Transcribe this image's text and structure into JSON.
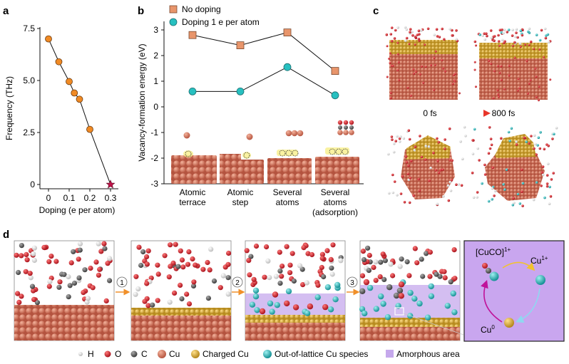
{
  "panels": {
    "a": "a",
    "b": "b",
    "c": "c",
    "d": "d"
  },
  "chart_data": [
    {
      "type": "line",
      "title": "",
      "xlabel": "Doping (e per atom)",
      "ylabel": "Frequency (THz)",
      "x": [
        0,
        0.05,
        0.1,
        0.125,
        0.15,
        0.2,
        0.3
      ],
      "values": [
        7.0,
        5.9,
        4.95,
        4.4,
        4.1,
        2.65,
        0.0
      ],
      "xticks": [
        "0",
        "0.1",
        "0.2",
        "0.3"
      ],
      "yticks": [
        "0",
        "2.5",
        "5.0",
        "7.5"
      ],
      "xlim": [
        -0.02,
        0.32
      ],
      "ylim": [
        -0.2,
        7.6
      ],
      "last_point_marker": "star"
    },
    {
      "type": "line",
      "xlabel": "",
      "ylabel": "Vacancy-formation energy (eV)",
      "categories": [
        "Atomic terrace",
        "Atomic step",
        "Several atoms",
        "Several atoms (adsorption)"
      ],
      "category_lines": [
        [
          "Atomic",
          "terrace"
        ],
        [
          "Atomic",
          "step"
        ],
        [
          "Several",
          "atoms"
        ],
        [
          "Several",
          "atoms",
          "(adsorption)"
        ]
      ],
      "series": [
        {
          "name": "No doping",
          "values": [
            2.8,
            2.4,
            2.9,
            1.4
          ],
          "color": "#e8956b",
          "marker": "square"
        },
        {
          "name": "Doping 1 e per atom",
          "values": [
            0.6,
            0.6,
            1.55,
            0.45
          ],
          "color": "#27c0c0",
          "marker": "circle"
        }
      ],
      "yticks": [
        "-3",
        "-2",
        "-1",
        "0",
        "1",
        "2",
        "3"
      ],
      "ylim": [
        -3,
        3.3
      ]
    }
  ],
  "panel_c": {
    "time_start": "0 fs",
    "time_end": "800 fs"
  },
  "panel_d": {
    "steps": [
      "1",
      "2",
      "3"
    ],
    "cycle": {
      "species_top": "[CuCO]",
      "species_top_charge": "1+",
      "species_right": "Cu",
      "species_right_charge": "1+",
      "species_bottom": "Cu",
      "species_bottom_charge": "0"
    }
  },
  "legend": [
    {
      "label": "H",
      "color": "#f2f2f2"
    },
    {
      "label": "O",
      "color": "#d8232a"
    },
    {
      "label": "C",
      "color": "#6b6b6b"
    },
    {
      "label": "Cu",
      "color": "#d8765e"
    },
    {
      "label": "Charged Cu",
      "color": "#e2b53a"
    },
    {
      "label": "Out-of-lattice Cu species",
      "color": "#27c0c0"
    },
    {
      "label": "Amorphous area",
      "color": "#c5a8ec"
    }
  ]
}
